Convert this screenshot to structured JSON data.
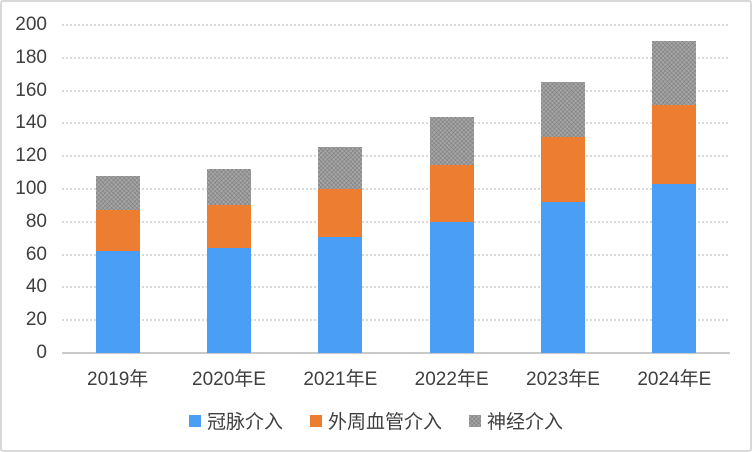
{
  "chart_data": {
    "type": "bar",
    "stacked": true,
    "title": "",
    "xlabel": "",
    "ylabel": "",
    "categories": [
      "2019年",
      "2020年E",
      "2021年E",
      "2022年E",
      "2023年E",
      "2024年E"
    ],
    "series": [
      {
        "id": "coronary-intervention",
        "name": "冠脉介入",
        "color": "#4A9EF5",
        "pattern": "solid",
        "values": [
          62,
          64,
          71,
          80,
          92,
          103
        ]
      },
      {
        "id": "peripheral-vascular-intervention",
        "name": "外周血管介入",
        "color": "#ED7D31",
        "pattern": "solid",
        "values": [
          25,
          26,
          29,
          34.5,
          40,
          48
        ]
      },
      {
        "id": "neuro-intervention",
        "name": "神经介入",
        "color": "#A6A6A6",
        "pattern": "stipple",
        "values": [
          21,
          22.5,
          25.5,
          29.5,
          33,
          39
        ]
      }
    ],
    "stack_totals": [
      108,
      112.5,
      125.5,
      144,
      165,
      190
    ],
    "ylim": [
      0,
      200
    ],
    "ytick_step": 20,
    "ytick_labels": [
      "0",
      "20",
      "40",
      "60",
      "80",
      "100",
      "120",
      "140",
      "160",
      "180",
      "200"
    ],
    "grid": "horizontal-dotted",
    "legend_position": "bottom"
  },
  "colors": {
    "background": "#FFFFFF",
    "frame_border": "#D9D9D9",
    "gridline": "#D9D9D9",
    "axis_line": "#C9C9C9",
    "text": "#3F3F3F"
  }
}
